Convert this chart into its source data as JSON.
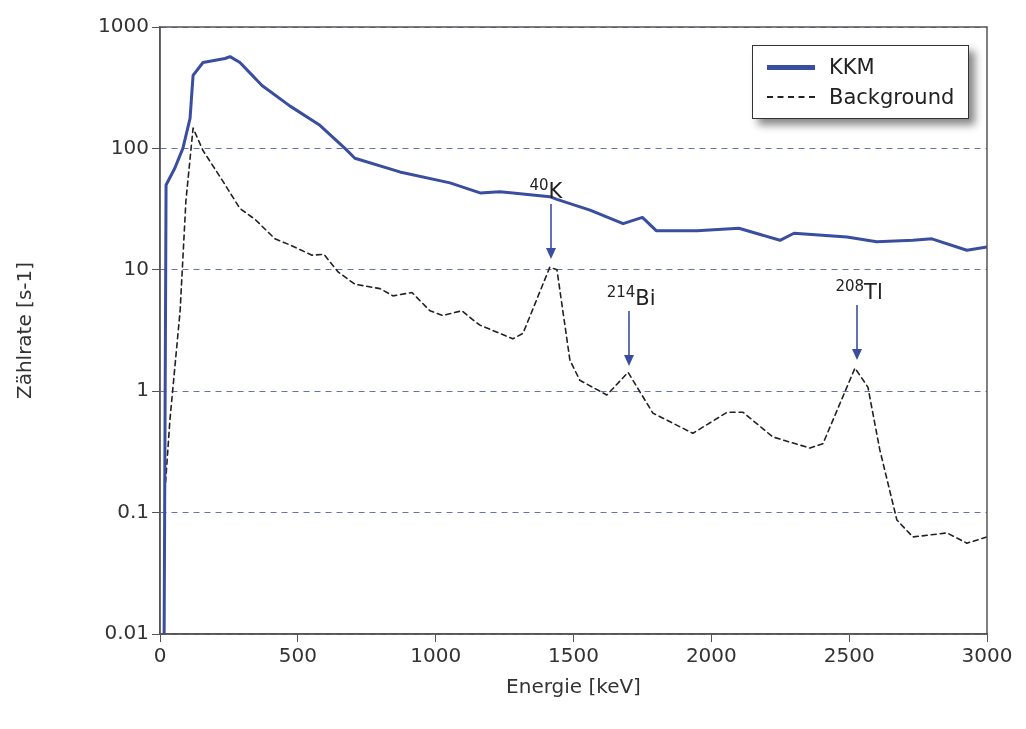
{
  "chart_data": {
    "type": "line",
    "xlabel": "Energie [keV]",
    "ylabel": "Zählrate [s-1]",
    "xlim": [
      0,
      3000
    ],
    "xticks": [
      0,
      500,
      1000,
      1500,
      2000,
      2500,
      3000
    ],
    "ylim": [
      0.01,
      1000
    ],
    "yticks": [
      0.01,
      0.1,
      1,
      10,
      100,
      1000
    ],
    "log": "y",
    "grid": "y",
    "legend": "top right",
    "marker": "none",
    "series": [
      {
        "name": "KKM",
        "color": "#3a4ea0",
        "line_style": "solid",
        "x": [
          15,
          22,
          54,
          83,
          109,
          120,
          156,
          236,
          254,
          290,
          370,
          472,
          580,
          671,
          707,
          870,
          1052,
          1161,
          1233,
          1414,
          1440,
          1560,
          1680,
          1750,
          1800,
          1948,
          2100,
          2249,
          2300,
          2492,
          2600,
          2731,
          2800,
          2927,
          3000
        ],
        "values": [
          0.01,
          50,
          69,
          100,
          177,
          400,
          510,
          550,
          570,
          510,
          330,
          223,
          155,
          100,
          83,
          64,
          52,
          43,
          44,
          40,
          38,
          31,
          24,
          27,
          21,
          21,
          22,
          17.5,
          20,
          18.6,
          17,
          17.5,
          18,
          14.5,
          15.4
        ]
      },
      {
        "name": "Background",
        "color": "#222222",
        "line_style": "dashed",
        "x": [
          18,
          36,
          73,
          94,
          120,
          156,
          225,
          290,
          345,
          417,
          472,
          551,
          595,
          646,
          707,
          798,
          845,
          914,
          979,
          1026,
          1095,
          1146,
          1161,
          1280,
          1317,
          1414,
          1440,
          1487,
          1523,
          1621,
          1698,
          1788,
          1933,
          2057,
          2115,
          2223,
          2358,
          2405,
          2521,
          2568,
          2611,
          2673,
          2731,
          2855,
          2927,
          3000
        ],
        "values": [
          0.15,
          0.58,
          4.6,
          37,
          147,
          96,
          55,
          32,
          26,
          18,
          16,
          13.2,
          13.4,
          9.6,
          7.6,
          7.0,
          6.1,
          6.5,
          4.6,
          4.2,
          4.6,
          3.7,
          3.5,
          2.7,
          3.0,
          10.5,
          10,
          1.8,
          1.23,
          0.93,
          1.43,
          0.66,
          0.45,
          0.67,
          0.67,
          0.42,
          0.34,
          0.37,
          1.55,
          1.08,
          0.33,
          0.087,
          0.063,
          0.068,
          0.056,
          0.063
        ]
      }
    ],
    "annotations": [
      {
        "text": "$^{40}$K",
        "x": 1420,
        "y": 11
      },
      {
        "text": "$^{214}$Bi",
        "x": 1700,
        "y": 1.43
      },
      {
        "text": "$^{208}$Tl",
        "x": 2530,
        "y": 1.6
      }
    ]
  }
}
